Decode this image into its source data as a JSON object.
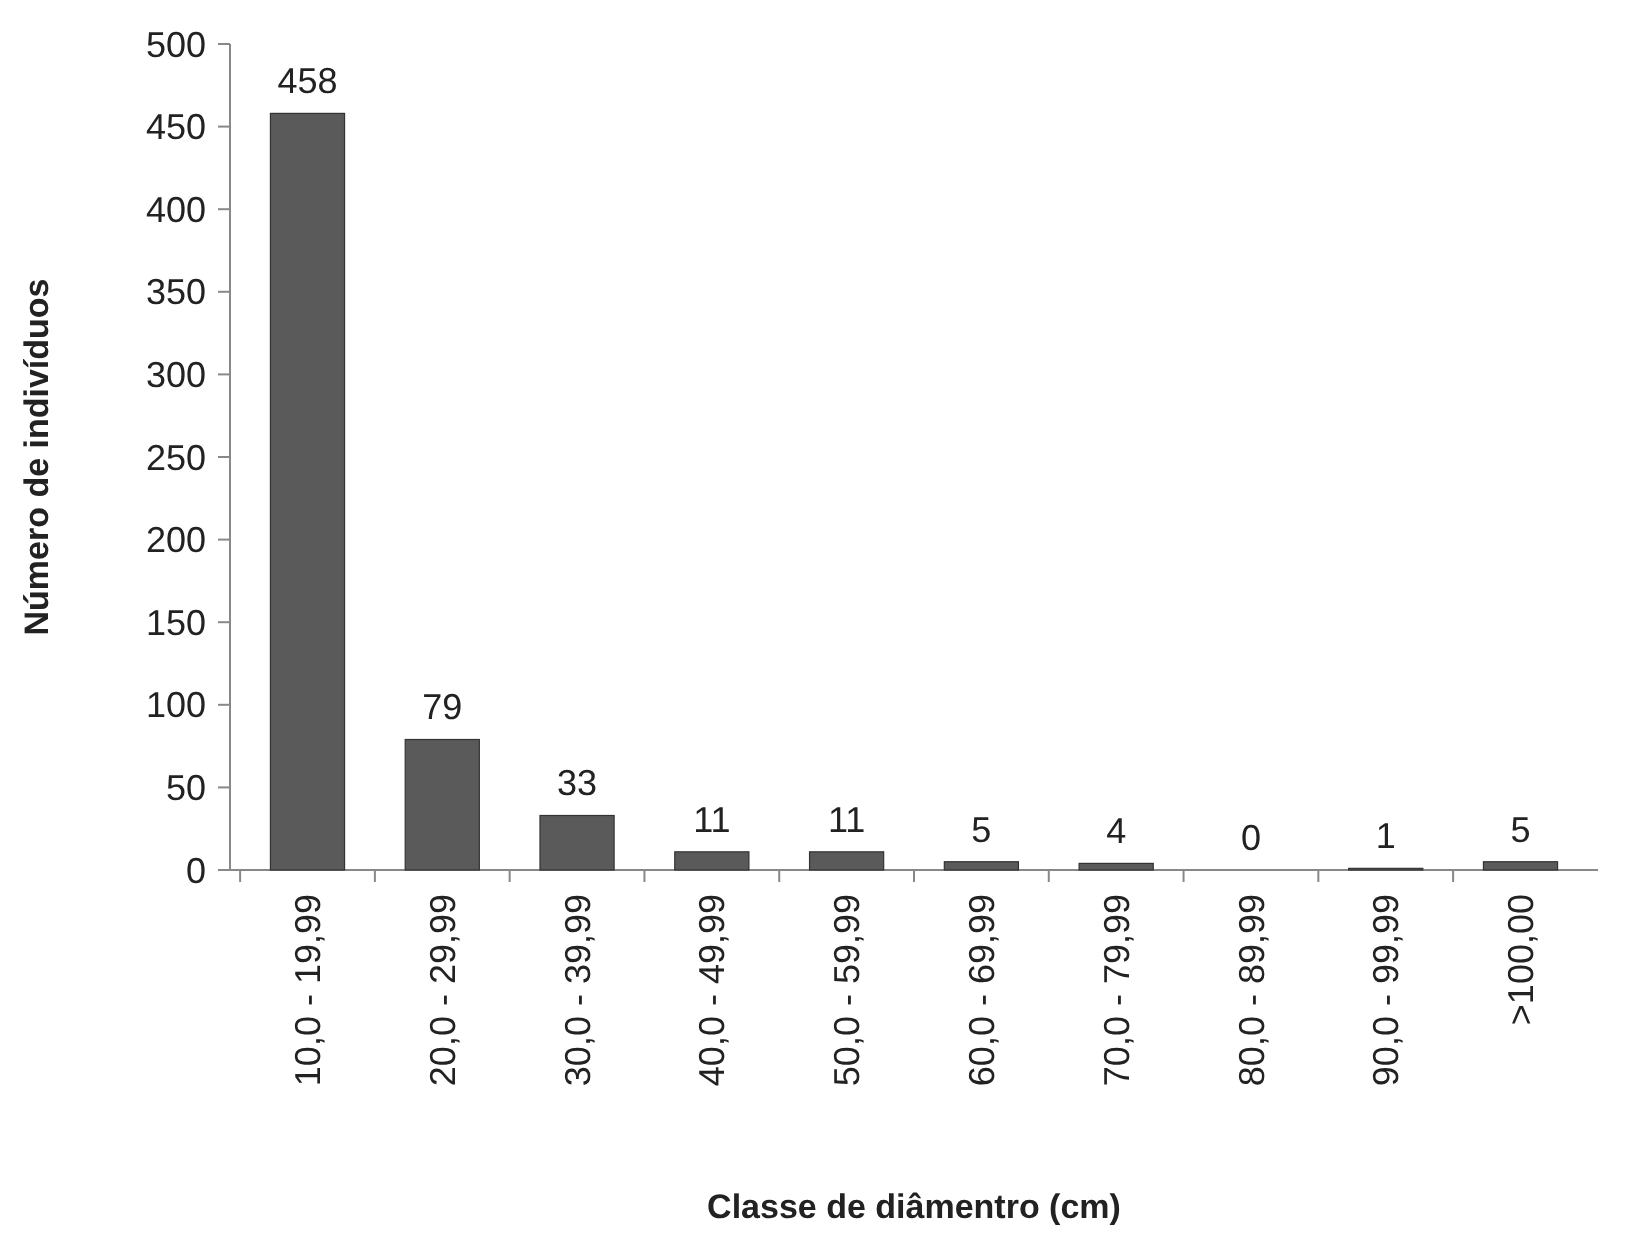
{
  "chart_data": {
    "type": "bar",
    "xlabel": "Classe de diâmentro (cm)",
    "ylabel": "Número de indivíduos",
    "categories": [
      "10,0 - 19,99",
      "20,0 - 29,99",
      "30,0 - 39,99",
      "40,0 - 49,99",
      "50,0 - 59,99",
      "60,0 - 69,99",
      "70,0 - 79,99",
      "80,0 - 89,99",
      "90,0 - 99,99",
      ">100,00"
    ],
    "values": [
      458,
      79,
      33,
      11,
      11,
      5,
      4,
      0,
      1,
      5
    ],
    "color": "#5a5a5a",
    "ylim": [
      0,
      500
    ],
    "yticks": [
      0,
      50,
      100,
      150,
      200,
      250,
      300,
      350,
      400,
      450,
      500
    ],
    "grid": false,
    "data_labels": true
  }
}
